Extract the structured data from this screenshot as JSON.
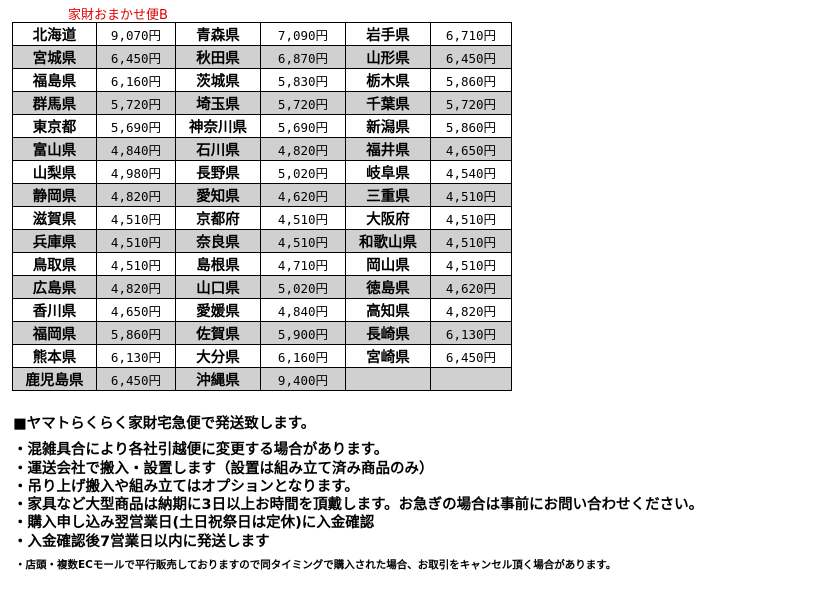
{
  "title": "家財おまかせ便B",
  "rows": [
    [
      [
        "北海道",
        "9,070円"
      ],
      [
        "青森県",
        "7,090円"
      ],
      [
        "岩手県",
        "6,710円"
      ]
    ],
    [
      [
        "宮城県",
        "6,450円"
      ],
      [
        "秋田県",
        "6,870円"
      ],
      [
        "山形県",
        "6,450円"
      ]
    ],
    [
      [
        "福島県",
        "6,160円"
      ],
      [
        "茨城県",
        "5,830円"
      ],
      [
        "栃木県",
        "5,860円"
      ]
    ],
    [
      [
        "群馬県",
        "5,720円"
      ],
      [
        "埼玉県",
        "5,720円"
      ],
      [
        "千葉県",
        "5,720円"
      ]
    ],
    [
      [
        "東京都",
        "5,690円"
      ],
      [
        "神奈川県",
        "5,690円"
      ],
      [
        "新潟県",
        "5,860円"
      ]
    ],
    [
      [
        "富山県",
        "4,840円"
      ],
      [
        "石川県",
        "4,820円"
      ],
      [
        "福井県",
        "4,650円"
      ]
    ],
    [
      [
        "山梨県",
        "4,980円"
      ],
      [
        "長野県",
        "5,020円"
      ],
      [
        "岐阜県",
        "4,540円"
      ]
    ],
    [
      [
        "静岡県",
        "4,820円"
      ],
      [
        "愛知県",
        "4,620円"
      ],
      [
        "三重県",
        "4,510円"
      ]
    ],
    [
      [
        "滋賀県",
        "4,510円"
      ],
      [
        "京都府",
        "4,510円"
      ],
      [
        "大阪府",
        "4,510円"
      ]
    ],
    [
      [
        "兵庫県",
        "4,510円"
      ],
      [
        "奈良県",
        "4,510円"
      ],
      [
        "和歌山県",
        "4,510円"
      ]
    ],
    [
      [
        "鳥取県",
        "4,510円"
      ],
      [
        "島根県",
        "4,710円"
      ],
      [
        "岡山県",
        "4,510円"
      ]
    ],
    [
      [
        "広島県",
        "4,820円"
      ],
      [
        "山口県",
        "5,020円"
      ],
      [
        "徳島県",
        "4,620円"
      ]
    ],
    [
      [
        "香川県",
        "4,650円"
      ],
      [
        "愛媛県",
        "4,840円"
      ],
      [
        "高知県",
        "4,820円"
      ]
    ],
    [
      [
        "福岡県",
        "5,860円"
      ],
      [
        "佐賀県",
        "5,900円"
      ],
      [
        "長崎県",
        "6,130円"
      ]
    ],
    [
      [
        "熊本県",
        "6,130円"
      ],
      [
        "大分県",
        "6,160円"
      ],
      [
        "宮崎県",
        "6,450円"
      ]
    ],
    [
      [
        "鹿児島県",
        "6,450円"
      ],
      [
        "沖縄県",
        "9,400円"
      ],
      [
        "",
        ""
      ]
    ]
  ],
  "notes": {
    "heading": "■ヤマトらくらく家財宅急便で発送致します。",
    "items": [
      "・混雑具合により各社引越便に変更する場合があります。",
      "・運送会社で搬入・設置します（設置は組み立て済み商品のみ）",
      "・吊り上げ搬入や組み立てはオプションとなります。",
      "・家具など大型商品は納期に3日以上お時間を頂戴します。お急ぎの場合は事前にお問い合わせください。",
      "・購入申し込み翌営業日(土日祝祭日は定休)に入金確認",
      "・入金確認後7営業日以内に発送します"
    ],
    "small": "・店頭・複数ECモールで平行販売しておりますので同タイミングで購入された場合、お取引をキャンセル頂く場合があります。"
  },
  "colors": {
    "title": "#e00000",
    "stripe": "#d0d0d0"
  }
}
